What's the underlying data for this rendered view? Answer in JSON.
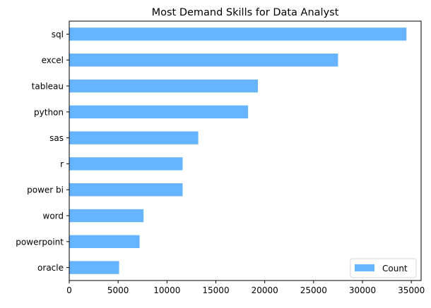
{
  "chart_data": {
    "type": "bar",
    "orientation": "horizontal",
    "title": "Most Demand Skills for Data Analyst",
    "xlabel": "",
    "ylabel": "",
    "categories": [
      "sql",
      "excel",
      "tableau",
      "python",
      "sas",
      "r",
      "power bi",
      "word",
      "powerpoint",
      "oracle"
    ],
    "series": [
      {
        "name": "Count",
        "values": [
          34500,
          27500,
          19300,
          18300,
          13200,
          11600,
          11600,
          7600,
          7200,
          5100
        ],
        "color": "#66b3ff"
      }
    ],
    "xlim": [
      0,
      36000
    ],
    "xticks": [
      0,
      5000,
      10000,
      15000,
      20000,
      25000,
      30000,
      35000
    ],
    "grid": false,
    "legend_position": "lower right"
  }
}
